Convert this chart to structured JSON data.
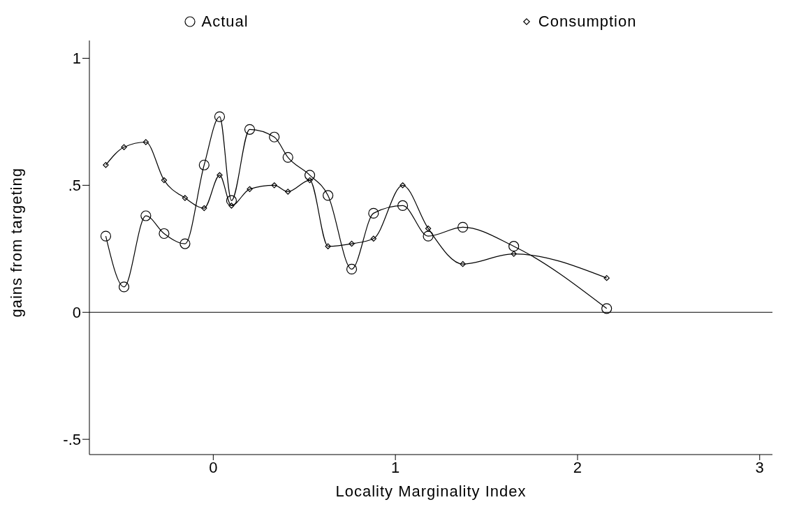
{
  "chart_data": {
    "type": "line",
    "xlabel": "Locality Marginality Index",
    "ylabel": "gains from targeting",
    "xlim": [
      -0.68,
      3.07
    ],
    "xticks": [
      0,
      1,
      2,
      3
    ],
    "ylim": [
      -0.56,
      1.07
    ],
    "yticks": [
      {
        "value": -0.5,
        "label": "-.5"
      },
      0,
      {
        "value": 0.5,
        "label": ".5"
      },
      1
    ],
    "grid": false,
    "legend": "top",
    "line_style": "solid",
    "ref_lines": [
      {
        "axis": "y",
        "value": 0,
        "color": "#000000"
      }
    ],
    "series": [
      {
        "name": "Actual",
        "color": "#000000",
        "marker": "circle",
        "x": [
          -0.59,
          -0.49,
          -0.37,
          -0.27,
          -0.155,
          -0.05,
          0.035,
          0.1,
          0.2,
          0.335,
          0.41,
          0.53,
          0.63,
          0.76,
          0.88,
          1.04,
          1.18,
          1.37,
          1.65,
          2.16
        ],
        "values": [
          0.3,
          0.1,
          0.38,
          0.31,
          0.27,
          0.58,
          0.77,
          0.44,
          0.72,
          0.69,
          0.61,
          0.54,
          0.46,
          0.17,
          0.39,
          0.42,
          0.3,
          0.335,
          0.26,
          0.015
        ]
      },
      {
        "name": "Consumption",
        "color": "#000000",
        "marker": "diamond",
        "x": [
          -0.59,
          -0.49,
          -0.37,
          -0.27,
          -0.155,
          -0.05,
          0.035,
          0.1,
          0.2,
          0.335,
          0.41,
          0.53,
          0.63,
          0.76,
          0.88,
          1.04,
          1.18,
          1.37,
          1.65,
          2.16
        ],
        "values": [
          0.58,
          0.65,
          0.67,
          0.52,
          0.45,
          0.41,
          0.54,
          0.42,
          0.485,
          0.5,
          0.475,
          0.52,
          0.26,
          0.27,
          0.29,
          0.5,
          0.33,
          0.19,
          0.23,
          0.135
        ]
      }
    ]
  }
}
